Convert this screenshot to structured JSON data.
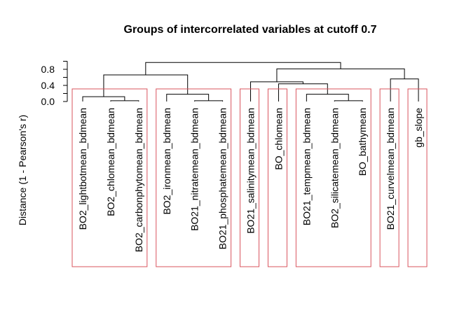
{
  "chart_data": {
    "type": "dendrogram",
    "title": "Groups of intercorrelated variables at cutoff 0.7",
    "ylabel": "Distance (1 - Pearson's r)",
    "yticks": [
      "0.0",
      "0.4",
      "0.8"
    ],
    "ylim": [
      0,
      1.0
    ],
    "leaves": [
      "BO2_lightbotmean_bdmean",
      "BO2_chlomean_bdmean",
      "BO2_carbonphytomean_bdmean",
      "BO2_ironmean_bdmean",
      "BO21_nitratemean_bdmean",
      "BO21_phosphatemean_bdmean",
      "BO21_salinitymean_bdmean",
      "BO_chlomean",
      "BO21_tempmean_bdmean",
      "BO2_silicatemean_bdmean",
      "BO_bathymean",
      "BO21_curvelmean_bdmean",
      "gb_slope"
    ],
    "merges": [
      {
        "left": {
          "leaf": 1
        },
        "right": {
          "leaf": 2
        },
        "height": 0.02
      },
      {
        "left": {
          "leaf": 0
        },
        "right": {
          "merge": 0
        },
        "height": 0.12
      },
      {
        "left": {
          "leaf": 4
        },
        "right": {
          "leaf": 5
        },
        "height": 0.02
      },
      {
        "left": {
          "leaf": 3
        },
        "right": {
          "merge": 2
        },
        "height": 0.18
      },
      {
        "left": {
          "merge": 1
        },
        "right": {
          "merge": 3
        },
        "height": 0.66
      },
      {
        "left": {
          "leaf": 9
        },
        "right": {
          "leaf": 10
        },
        "height": 0.02
      },
      {
        "left": {
          "leaf": 8
        },
        "right": {
          "merge": 5
        },
        "height": 0.18
      },
      {
        "left": {
          "leaf": 7
        },
        "right": {
          "merge": 6
        },
        "height": 0.44
      },
      {
        "left": {
          "leaf": 6
        },
        "right": {
          "merge": 7
        },
        "height": 0.49
      },
      {
        "left": {
          "leaf": 11
        },
        "right": {
          "leaf": 12
        },
        "height": 0.56
      },
      {
        "left": {
          "merge": 8
        },
        "right": {
          "merge": 9
        },
        "height": 0.81
      },
      {
        "left": {
          "merge": 4
        },
        "right": {
          "merge": 10
        },
        "height": 0.97
      }
    ],
    "groups": [
      [
        0,
        2
      ],
      [
        3,
        5
      ],
      [
        6,
        6
      ],
      [
        7,
        7
      ],
      [
        8,
        10
      ],
      [
        11,
        11
      ],
      [
        12,
        12
      ]
    ],
    "cutoff": 0.7,
    "group_box_color": "#d9545e",
    "line_color": "#000000"
  }
}
